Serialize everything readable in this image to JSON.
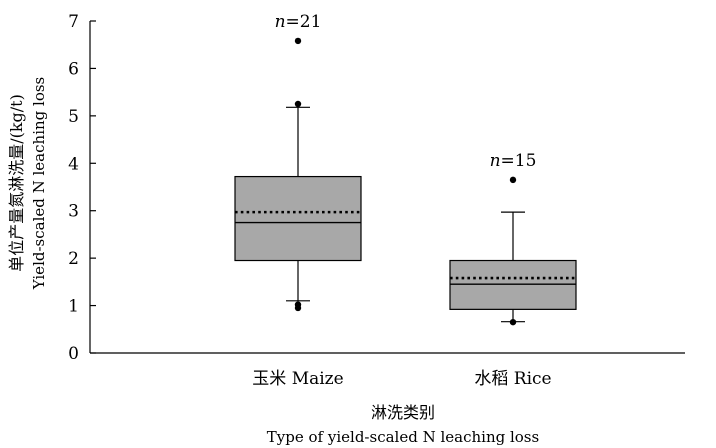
{
  "chart_data": {
    "type": "box",
    "ylabel_zh": "单位产量氮淋洗量/(kg/t)",
    "ylabel_en": "Yield-scaled N leaching loss",
    "xlabel_zh": "淋洗类别",
    "xlabel_en": "Type of yield-scaled N leaching loss",
    "ylim": [
      0,
      7
    ],
    "yticks": [
      0,
      1,
      2,
      3,
      4,
      5,
      6,
      7
    ],
    "grid": false,
    "categories": [
      "玉米 Maize",
      "水稻 Rice"
    ],
    "boxes": [
      {
        "category": "玉米 Maize",
        "n_label": "n=21",
        "whisker_low": 1.1,
        "q1": 1.95,
        "median": 2.75,
        "mean": 2.97,
        "q3": 3.72,
        "whisker_high": 5.18,
        "outliers": [
          0.95,
          1.02,
          5.25,
          6.58
        ]
      },
      {
        "category": "水稻 Rice",
        "n_label": "n=15",
        "whisker_low": 0.66,
        "q1": 0.92,
        "median": 1.45,
        "mean": 1.58,
        "q3": 1.95,
        "whisker_high": 2.97,
        "outliers": [
          0.65,
          3.65
        ]
      }
    ],
    "colors": {
      "box_fill": "#a8a8a8",
      "stroke": "#000000"
    }
  }
}
